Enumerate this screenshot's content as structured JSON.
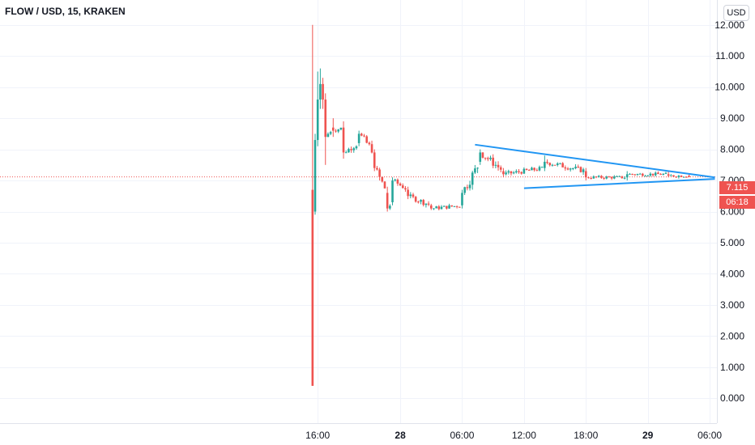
{
  "header": {
    "title": "FLOW / USD, 15, KRAKEN",
    "currency_button": "USD"
  },
  "price_labels": {
    "last_price": "7.115",
    "countdown": "06:18"
  },
  "colors": {
    "up": "#26a69a",
    "down": "#ef5350",
    "trendline": "#2196f3",
    "grid": "#f0f3fa",
    "text": "#131722",
    "last_price_line": "#ef5350"
  },
  "chart_data": {
    "type": "candlestick",
    "symbol": "FLOW / USD",
    "interval": "15",
    "exchange": "KRAKEN",
    "title": "FLOW / USD, 15, KRAKEN",
    "ylim": [
      -0.8,
      12.8
    ],
    "y_ticks": [
      {
        "value": 12,
        "label": "12.000"
      },
      {
        "value": 11,
        "label": "11.000"
      },
      {
        "value": 10,
        "label": "10.000"
      },
      {
        "value": 9,
        "label": "9.000"
      },
      {
        "value": 8,
        "label": "8.000"
      },
      {
        "value": 7,
        "label": "7.000"
      },
      {
        "value": 6,
        "label": "6.000"
      },
      {
        "value": 5,
        "label": "5.000"
      },
      {
        "value": 4,
        "label": "4.000"
      },
      {
        "value": 3,
        "label": "3.000"
      },
      {
        "value": 2,
        "label": "2.000"
      },
      {
        "value": 1,
        "label": "1.000"
      },
      {
        "value": 0,
        "label": "0.000"
      }
    ],
    "x_ticks": [
      {
        "hour": 16,
        "label": "16:00",
        "bold": false
      },
      {
        "hour": 24,
        "label": "28",
        "bold": true
      },
      {
        "hour": 30,
        "label": "06:00",
        "bold": false
      },
      {
        "hour": 36,
        "label": "12:00",
        "bold": false
      },
      {
        "hour": 42,
        "label": "18:00",
        "bold": false
      },
      {
        "hour": 48,
        "label": "29",
        "bold": true
      },
      {
        "hour": 54,
        "label": "06:00",
        "bold": false
      }
    ],
    "xlim_hours": [
      -14.8,
      54.7
    ],
    "last_price": 7.115,
    "grid": true,
    "anchor_candles": [
      {
        "t": 15.5,
        "o": 6.7,
        "h": 12.0,
        "l": 0.4,
        "c": 0.4
      },
      {
        "t": 15.75,
        "o": 6.0,
        "h": 8.5,
        "l": 5.9,
        "c": 8.3
      },
      {
        "t": 16.0,
        "o": 8.3,
        "h": 10.5,
        "l": 8.1,
        "c": 9.6
      },
      {
        "t": 16.25,
        "o": 9.6,
        "h": 10.6,
        "l": 9.3,
        "c": 10.1
      },
      {
        "t": 16.5,
        "o": 10.1,
        "h": 10.3,
        "l": 9.3,
        "c": 9.6
      },
      {
        "t": 16.75,
        "o": 9.6,
        "h": 9.8,
        "l": 7.5,
        "c": 8.4
      },
      {
        "t": 17.5,
        "o": 8.7,
        "h": 9.0,
        "l": 8.4,
        "c": 8.6
      },
      {
        "t": 18.5,
        "o": 8.7,
        "h": 8.9,
        "l": 7.7,
        "c": 7.9
      },
      {
        "t": 20.0,
        "o": 8.2,
        "h": 8.6,
        "l": 8.1,
        "c": 8.5
      },
      {
        "t": 21.5,
        "o": 7.9,
        "h": 8.0,
        "l": 7.3,
        "c": 7.4
      },
      {
        "t": 22.75,
        "o": 6.6,
        "h": 6.8,
        "l": 6.0,
        "c": 6.1
      },
      {
        "t": 23.25,
        "o": 6.3,
        "h": 7.1,
        "l": 6.2,
        "c": 7.0
      },
      {
        "t": 24.75,
        "o": 6.7,
        "h": 6.8,
        "l": 6.4,
        "c": 6.5
      },
      {
        "t": 27.0,
        "o": 6.2,
        "h": 6.25,
        "l": 6.05,
        "c": 6.1
      },
      {
        "t": 30.0,
        "o": 6.2,
        "h": 6.7,
        "l": 6.1,
        "c": 6.6
      },
      {
        "t": 31.75,
        "o": 7.6,
        "h": 8.0,
        "l": 7.5,
        "c": 7.9
      },
      {
        "t": 34.0,
        "o": 7.3,
        "h": 7.4,
        "l": 7.1,
        "c": 7.2
      },
      {
        "t": 38.0,
        "o": 7.4,
        "h": 7.8,
        "l": 7.3,
        "c": 7.6
      },
      {
        "t": 42.0,
        "o": 7.3,
        "h": 7.4,
        "l": 7.0,
        "c": 7.1
      },
      {
        "t": 46.0,
        "o": 7.1,
        "h": 7.3,
        "l": 7.0,
        "c": 7.2
      },
      {
        "t": 50.0,
        "o": 7.2,
        "h": 7.3,
        "l": 7.1,
        "c": 7.15
      },
      {
        "t": 52.0,
        "o": 7.15,
        "h": 7.2,
        "l": 7.1,
        "c": 7.115
      }
    ],
    "drawings": [
      {
        "name": "upper-trendline",
        "from": {
          "t": 31.25,
          "price": 8.15
        },
        "to": {
          "t": 54.5,
          "price": 7.1
        }
      },
      {
        "name": "lower-trendline",
        "from": {
          "t": 36.0,
          "price": 6.75
        },
        "to": {
          "t": 54.5,
          "price": 7.05
        }
      }
    ]
  }
}
